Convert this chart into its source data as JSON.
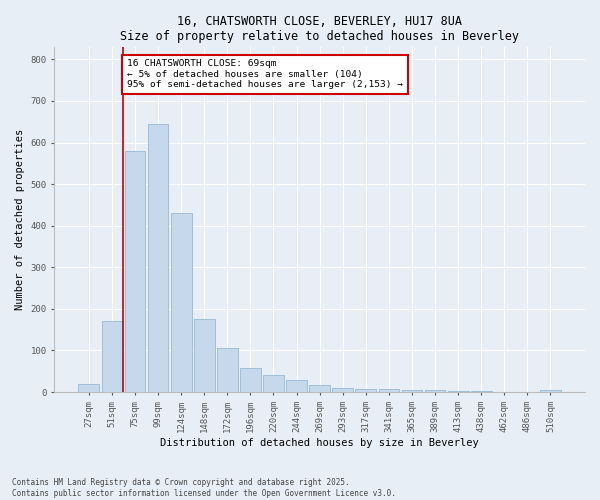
{
  "title1": "16, CHATSWORTH CLOSE, BEVERLEY, HU17 8UA",
  "title2": "Size of property relative to detached houses in Beverley",
  "xlabel": "Distribution of detached houses by size in Beverley",
  "ylabel": "Number of detached properties",
  "bar_color": "#c5d8ec",
  "bar_edge_color": "#8ab0cc",
  "categories": [
    "27sqm",
    "51sqm",
    "75sqm",
    "99sqm",
    "124sqm",
    "148sqm",
    "172sqm",
    "196sqm",
    "220sqm",
    "244sqm",
    "269sqm",
    "293sqm",
    "317sqm",
    "341sqm",
    "365sqm",
    "389sqm",
    "413sqm",
    "438sqm",
    "462sqm",
    "486sqm",
    "510sqm"
  ],
  "values": [
    20,
    170,
    580,
    645,
    430,
    175,
    105,
    58,
    42,
    30,
    16,
    10,
    8,
    8,
    5,
    5,
    3,
    2,
    1,
    1,
    5
  ],
  "vline_x": 1.5,
  "annotation_text": "16 CHATSWORTH CLOSE: 69sqm\n← 5% of detached houses are smaller (104)\n95% of semi-detached houses are larger (2,153) →",
  "annotation_box_color": "#ffffff",
  "annotation_border_color": "#cc0000",
  "vline_color": "#cc0000",
  "ylim": [
    0,
    830
  ],
  "yticks": [
    0,
    100,
    200,
    300,
    400,
    500,
    600,
    700,
    800
  ],
  "footnote": "Contains HM Land Registry data © Crown copyright and database right 2025.\nContains public sector information licensed under the Open Government Licence v3.0.",
  "bg_color": "#e8eef6",
  "plot_bg_color": "#e8eef6",
  "grid_color": "#ffffff",
  "title_fontsize": 8.5,
  "axis_label_fontsize": 7.5,
  "tick_fontsize": 6.5,
  "annotation_fontsize": 6.8,
  "footnote_fontsize": 5.5
}
